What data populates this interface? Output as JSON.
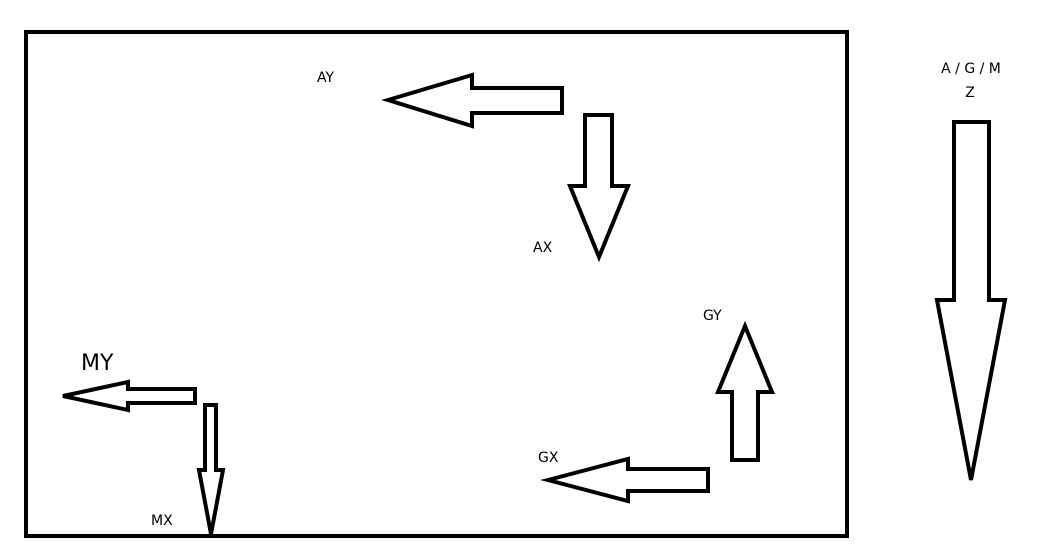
{
  "labels": {
    "ay": "AY",
    "ax": "AX",
    "gy": "GY",
    "gx": "GX",
    "my": "MY",
    "mx": "MX",
    "z_top": "A / G / M",
    "z_bottom": "Z"
  }
}
